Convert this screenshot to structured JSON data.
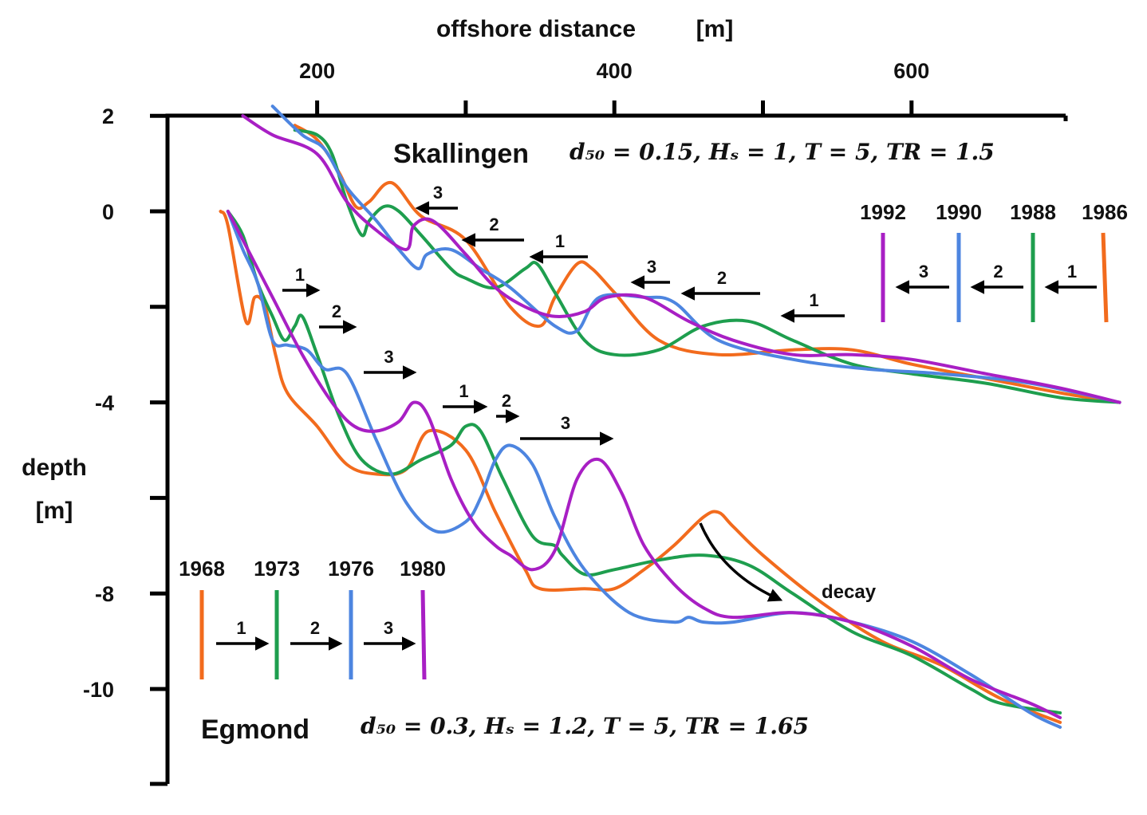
{
  "chart_data": {
    "type": "line",
    "xlabel": "offshore distance",
    "xunit": "[m]",
    "ylabel": "depth",
    "yunit": "[m]",
    "xlim": [
      100,
      700
    ],
    "ylim": [
      -10,
      2
    ],
    "x_ticks": [
      200,
      400,
      600
    ],
    "y_ticks": [
      2,
      0,
      -4,
      -8,
      -10
    ],
    "grid": false,
    "colors": {
      "orange": "#f26b1d",
      "green": "#1e9e4e",
      "blue": "#4d85e0",
      "purple": "#a81fc4"
    },
    "panels": [
      {
        "name": "Skallingen",
        "params_text": "d₅₀ = 0.15, Hₛ = 1, T = 5, TR = 1.5",
        "legend_years": [
          "1992",
          "1990",
          "1988",
          "1986"
        ],
        "legend_steps": [
          "3",
          "2",
          "1"
        ],
        "series": [
          {
            "name": "1986",
            "color": "#f26b1d",
            "x": [
              185,
              200,
              215,
              226,
              235,
              250,
              270,
              300,
              330,
              350,
              360,
              375,
              385,
              400,
              430,
              470,
              520,
              560,
              600,
              650,
              700,
              740
            ],
            "y": [
              1.8,
              1.5,
              0.8,
              0.1,
              0.2,
              0.6,
              -0.1,
              -0.6,
              -2.0,
              -2.4,
              -1.8,
              -1.1,
              -1.2,
              -1.7,
              -2.7,
              -3.0,
              -2.9,
              -2.9,
              -3.2,
              -3.5,
              -3.8,
              -4.0
            ]
          },
          {
            "name": "1988",
            "color": "#1e9e4e",
            "x": [
              185,
              200,
              210,
              220,
              230,
              235,
              245,
              255,
              270,
              290,
              300,
              320,
              340,
              348,
              360,
              380,
              400,
              430,
              460,
              490,
              520,
              560,
              600,
              650,
              700,
              740
            ],
            "y": [
              1.7,
              1.6,
              1.2,
              0.2,
              -0.5,
              -0.2,
              0.1,
              0.0,
              -0.5,
              -1.2,
              -1.4,
              -1.6,
              -1.2,
              -1.1,
              -1.7,
              -2.7,
              -3.0,
              -2.9,
              -2.4,
              -2.3,
              -2.7,
              -3.2,
              -3.4,
              -3.6,
              -3.9,
              -4.0
            ]
          },
          {
            "name": "1990",
            "color": "#4d85e0",
            "x": [
              170,
              190,
              205,
              220,
              240,
              255,
              268,
              274,
              290,
              310,
              330,
              360,
              375,
              390,
              420,
              440,
              470,
              520,
              570,
              620,
              680,
              740
            ],
            "y": [
              2.2,
              1.6,
              1.3,
              0.5,
              -0.2,
              -0.8,
              -1.2,
              -0.9,
              -0.8,
              -1.2,
              -1.6,
              -2.4,
              -2.5,
              -1.8,
              -1.8,
              -1.9,
              -2.7,
              -3.1,
              -3.3,
              -3.4,
              -3.6,
              -4.0
            ]
          },
          {
            "name": "1992",
            "color": "#a81fc4",
            "x": [
              150,
              170,
              200,
              220,
              240,
              260,
              265,
              278,
              300,
              320,
              340,
              360,
              380,
              395,
              420,
              450,
              480,
              520,
              560,
              600,
              650,
              700,
              740
            ],
            "y": [
              2.0,
              1.6,
              1.2,
              0.2,
              -0.4,
              -0.8,
              -0.3,
              -0.2,
              -0.9,
              -1.6,
              -2.0,
              -2.2,
              -2.1,
              -1.8,
              -1.8,
              -2.3,
              -2.7,
              -3.0,
              -3.0,
              -3.1,
              -3.4,
              -3.7,
              -4.0
            ]
          }
        ]
      },
      {
        "name": "Egmond",
        "params_text": "d₅₀ = 0.3, Hₛ = 1.2, T = 5, TR = 1.65",
        "legend_years": [
          "1968",
          "1973",
          "1976",
          "1980"
        ],
        "legend_steps": [
          "1",
          "2",
          "3"
        ],
        "annotation": "decay",
        "series": [
          {
            "name": "1968",
            "color": "#f26b1d",
            "x": [
              135,
              140,
              152,
              158,
              165,
              172,
              180,
              200,
              220,
              240,
              260,
              275,
              300,
              320,
              340,
              350,
              380,
              400,
              420,
              440,
              460,
              470,
              480,
              500,
              540,
              580,
              620,
              660,
              700
            ],
            "y": [
              0.0,
              -0.3,
              -2.3,
              -1.8,
              -2.0,
              -3.0,
              -3.8,
              -4.5,
              -5.3,
              -5.5,
              -5.4,
              -4.6,
              -5.0,
              -6.3,
              -7.5,
              -7.9,
              -7.9,
              -7.9,
              -7.5,
              -7.0,
              -6.4,
              -6.3,
              -6.6,
              -7.2,
              -8.2,
              -9.0,
              -9.5,
              -10.2,
              -10.7
            ]
          },
          {
            "name": "1973",
            "color": "#1e9e4e",
            "x": [
              140,
              150,
              160,
              170,
              178,
              185,
              190,
              200,
              215,
              230,
              250,
              270,
              290,
              300,
              310,
              325,
              345,
              360,
              365,
              380,
              400,
              430,
              460,
              490,
              520,
              560,
              600,
              640,
              660,
              700
            ],
            "y": [
              0.0,
              -0.5,
              -1.5,
              -2.2,
              -2.7,
              -2.4,
              -2.2,
              -3.0,
              -4.3,
              -5.2,
              -5.5,
              -5.2,
              -4.9,
              -4.5,
              -4.6,
              -5.6,
              -6.8,
              -7.0,
              -7.2,
              -7.6,
              -7.5,
              -7.3,
              -7.2,
              -7.4,
              -8.0,
              -8.8,
              -9.3,
              -10.0,
              -10.3,
              -10.5
            ]
          },
          {
            "name": "1976",
            "color": "#4d85e0",
            "x": [
              140,
              150,
              160,
              170,
              180,
              193,
              205,
              220,
              240,
              260,
              280,
              300,
              310,
              320,
              330,
              345,
              360,
              380,
              410,
              440,
              450,
              460,
              480,
              520,
              560,
              600,
              640,
              680,
              700
            ],
            "y": [
              0.0,
              -0.8,
              -1.5,
              -2.7,
              -2.8,
              -2.9,
              -3.3,
              -3.4,
              -4.8,
              -6.1,
              -6.7,
              -6.5,
              -6.0,
              -5.2,
              -4.9,
              -5.3,
              -6.4,
              -7.5,
              -8.4,
              -8.6,
              -8.5,
              -8.6,
              -8.6,
              -8.4,
              -8.6,
              -9.0,
              -9.7,
              -10.5,
              -10.8
            ]
          },
          {
            "name": "1980",
            "color": "#a81fc4",
            "x": [
              140,
              155,
              170,
              190,
              210,
              225,
              240,
              255,
              265,
              275,
              290,
              305,
              320,
              330,
              345,
              360,
              375,
              390,
              405,
              420,
              440,
              460,
              480,
              520,
              560,
              600,
              640,
              680,
              700
            ],
            "y": [
              0.0,
              -0.9,
              -1.8,
              -3.0,
              -4.0,
              -4.5,
              -4.6,
              -4.4,
              -4.0,
              -4.3,
              -5.6,
              -6.5,
              -7.0,
              -7.2,
              -7.5,
              -7.1,
              -5.6,
              -5.2,
              -5.9,
              -7.0,
              -7.8,
              -8.3,
              -8.5,
              -8.4,
              -8.6,
              -9.1,
              -9.8,
              -10.3,
              -10.6
            ]
          }
        ]
      }
    ],
    "step_labels": {
      "skallingen_bar_arrows": [
        "3",
        "2",
        "1",
        "3",
        "2",
        "1"
      ],
      "egmond_bar_arrows": [
        "1",
        "2",
        "3",
        "1",
        "2",
        "3"
      ]
    }
  }
}
